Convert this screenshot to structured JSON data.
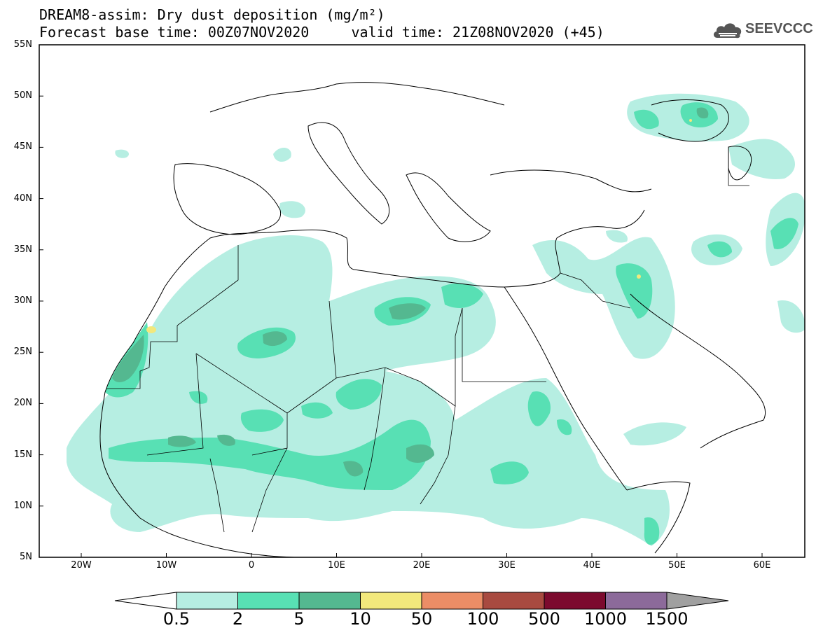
{
  "header": {
    "title_line1": "DREAM8-assim: Dry dust deposition (mg/m²)",
    "title_line2": "Forecast base time: 00Z07NOV2020     valid time: 21Z08NOV2020 (+45)"
  },
  "logo": {
    "text": "SEEVCCC",
    "icon": "cloud-icon"
  },
  "map": {
    "lat_labels": [
      "55N",
      "50N",
      "45N",
      "40N",
      "35N",
      "30N",
      "25N",
      "20N",
      "15N",
      "10N",
      "5N"
    ],
    "lon_labels": [
      "20W",
      "10W",
      "0",
      "10E",
      "20E",
      "30E",
      "40E",
      "50E",
      "60E"
    ]
  },
  "colorbar": {
    "labels": [
      "0.5",
      "2",
      "5",
      "10",
      "50",
      "100",
      "500",
      "1000",
      "1500"
    ],
    "colors": [
      "#b6eee2",
      "#58e0b4",
      "#54b890",
      "#f2e87c",
      "#eb8d66",
      "#a84a40",
      "#7c0a2e",
      "#8c6a9a",
      "#a0a0a0"
    ]
  }
}
